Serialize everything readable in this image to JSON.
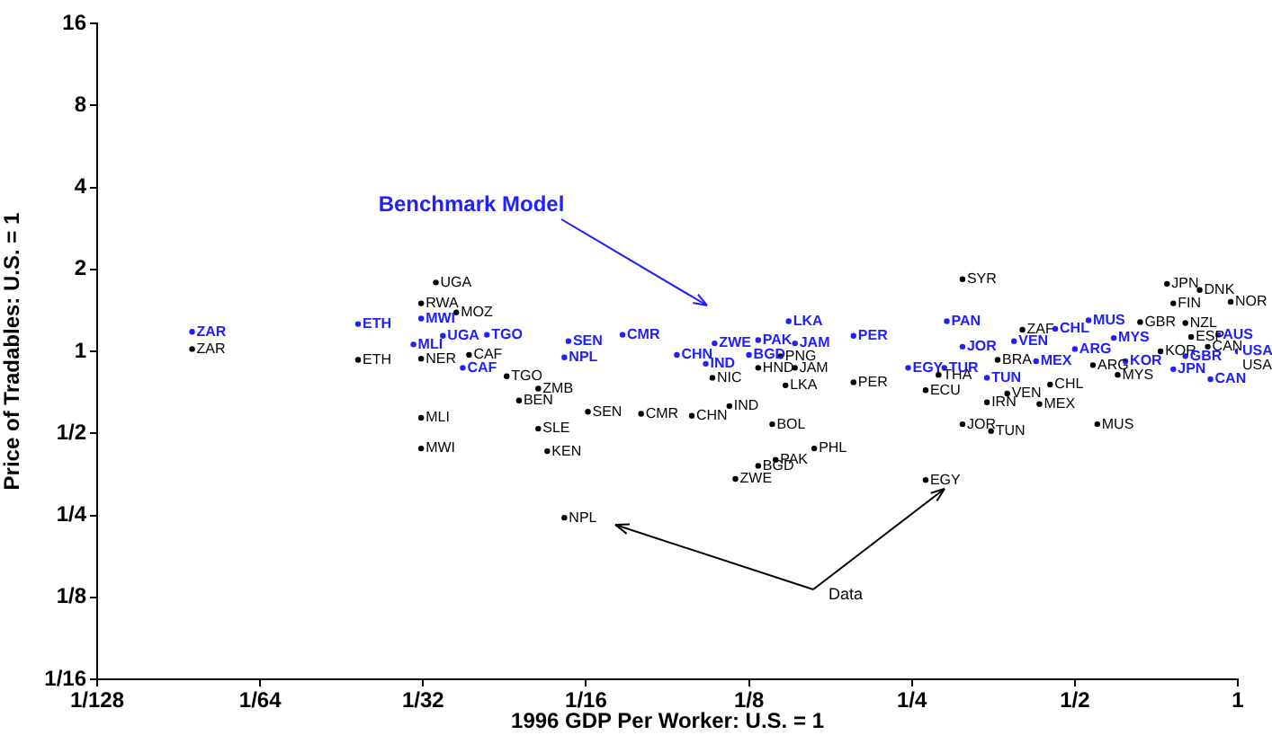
{
  "chart_data": {
    "type": "scatter",
    "xlabel": "1996 GDP Per Worker: U.S. = 1",
    "ylabel": "Price of Tradables: U.S. = 1",
    "log": "xy",
    "grid": false,
    "legend": false,
    "marker": "circle",
    "xlim": [
      0.0078125,
      1
    ],
    "ylim": [
      0.0625,
      16
    ],
    "xticks": [
      {
        "value": 0.0078125,
        "label": "1/128"
      },
      {
        "value": 0.015625,
        "label": "1/64"
      },
      {
        "value": 0.03125,
        "label": "1/32"
      },
      {
        "value": 0.0625,
        "label": "1/16"
      },
      {
        "value": 0.125,
        "label": "1/8"
      },
      {
        "value": 0.25,
        "label": "1/4"
      },
      {
        "value": 0.5,
        "label": "1/2"
      },
      1
    ],
    "yticks": [
      {
        "value": 0.0625,
        "label": "1/16"
      },
      {
        "value": 0.125,
        "label": "1/8"
      },
      {
        "value": 0.25,
        "label": "1/4"
      },
      {
        "value": 0.5,
        "label": "1/2"
      },
      1,
      2,
      4,
      8,
      16
    ],
    "series": [
      {
        "name": "Benchmark Model",
        "color": "#2020ff",
        "x": [
          0.0117,
          0.0237,
          0.031,
          0.03,
          0.034,
          0.037,
          0.041,
          0.058,
          0.057,
          0.073,
          0.092,
          0.104,
          0.108,
          0.125,
          0.13,
          0.152,
          0.148,
          0.195,
          0.246,
          0.287,
          0.29,
          0.31,
          0.344,
          0.386,
          0.424,
          0.46,
          0.53,
          0.5,
          0.59,
          0.62,
          0.76,
          0.8,
          0.92,
          0.89,
          1
        ],
        "values": [
          1.18,
          1.26,
          1.32,
          1.06,
          1.14,
          0.87,
          1.15,
          1.09,
          0.95,
          1.15,
          0.97,
          0.9,
          1.07,
          0.97,
          1.1,
          1.07,
          1.29,
          1.14,
          0.87,
          0.87,
          1.29,
          1.04,
          0.8,
          1.09,
          0.92,
          1.21,
          1.3,
          1.02,
          1.12,
          0.92,
          0.86,
          0.96,
          1.15,
          0.79,
          1
        ],
        "value_labels": [
          "ZAR",
          "ETH",
          "MWI",
          "MLI",
          "UGA",
          "CAF",
          "TGO",
          "SEN",
          "NPL",
          "CMR",
          "CHN",
          "IND",
          "ZWE",
          "BGD",
          "PAK",
          "JAM",
          "LKA",
          "PER",
          "EGY",
          "TUR",
          "PAN",
          "JOR",
          "TUN",
          "VEN",
          "MEX",
          "CHL",
          "MUS",
          "ARG",
          "MYS",
          "KOR",
          "JPN",
          "GBR",
          "AUS",
          "CAN",
          "USA"
        ]
      },
      {
        "name": "Data",
        "color": "#000000",
        "x": [
          0.0117,
          0.0237,
          0.033,
          0.031,
          0.036,
          0.031,
          0.038,
          0.0446,
          0.051,
          0.047,
          0.031,
          0.031,
          0.051,
          0.053,
          0.063,
          0.057,
          0.079,
          0.098,
          0.115,
          0.107,
          0.138,
          0.13,
          0.152,
          0.143,
          0.146,
          0.165,
          0.14,
          0.13,
          0.118,
          0.195,
          0.265,
          0.28,
          0.265,
          0.31,
          0.31,
          0.35,
          0.344,
          0.375,
          0.43,
          0.45,
          0.36,
          0.54,
          0.55,
          0.4,
          0.66,
          0.6,
          0.72,
          0.74,
          0.85,
          0.97,
          0.76,
          0.8,
          0.82,
          0.88,
          1
        ],
        "values": [
          1.02,
          0.93,
          1.79,
          1.5,
          1.39,
          0.94,
          0.97,
          0.81,
          0.73,
          0.66,
          0.57,
          0.44,
          0.52,
          0.43,
          0.6,
          0.245,
          0.59,
          0.58,
          0.63,
          0.8,
          0.54,
          0.87,
          0.87,
          0.96,
          0.75,
          0.44,
          0.4,
          0.38,
          0.34,
          0.77,
          0.72,
          0.82,
          0.337,
          1.84,
          0.54,
          0.51,
          0.65,
          0.7,
          0.64,
          0.755,
          0.93,
          0.89,
          0.54,
          1.2,
          1.28,
          0.82,
          1.0,
          1.77,
          1.68,
          1.52,
          1.5,
          1.27,
          1.13,
          1.04,
          1
        ],
        "value_labels": [
          "ZAR",
          "ETH",
          "UGA",
          "RWA",
          "MOZ",
          "NER",
          "CAF",
          "TGO",
          "ZMB",
          "BEN",
          "MLI",
          "MWI",
          "SLE",
          "KEN",
          "SEN",
          "NPL",
          "CMR",
          "CHN",
          "IND",
          "NIC",
          "BOL",
          "HND",
          "JAM",
          "PNG",
          "LKA",
          "PHL",
          "PAK",
          "BGD",
          "ZWE",
          "PER",
          "ECU",
          "THA",
          "EGY",
          "SYR",
          "JOR",
          "TUN",
          "IRN",
          "VEN",
          "MEX",
          "CHL",
          "BRA",
          "ARG",
          "MUS",
          "ZAF",
          "GBR",
          "MYS",
          "KOR",
          "JPN",
          "DNK",
          "NOR",
          "FIN",
          "NZL",
          "ESP",
          "CAN",
          "USA"
        ]
      }
    ]
  }
}
